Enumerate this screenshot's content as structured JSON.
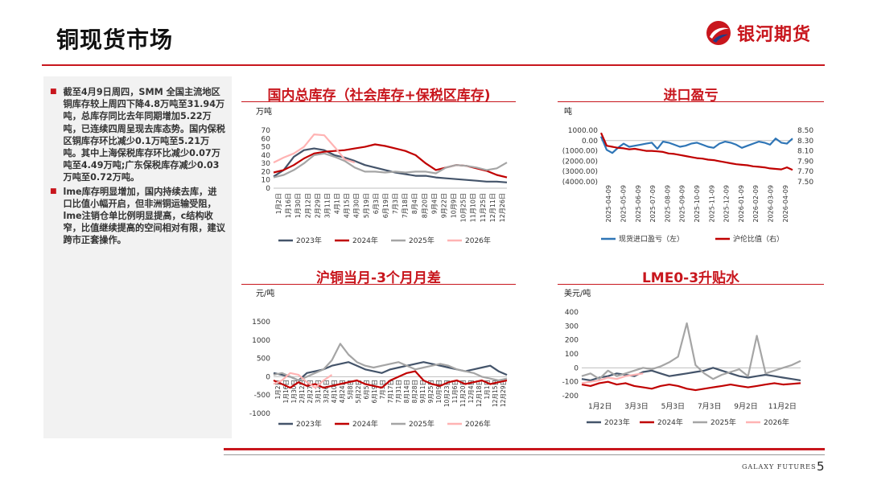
{
  "header": {
    "title": "铜现货市场",
    "logo_text": "银河期货"
  },
  "footer": {
    "brand": "GALAXY FUTURES",
    "page": "5"
  },
  "bullets": [
    "截至4月9日周四，SMM 全国主流地区铜库存较上周四下降4.8万吨至31.94万吨，总库存同比去年同期增加5.22万吨，已连续四周呈现去库态势。国内保税区铜库存环比减少0.1万吨至5.21万吨。其中上海保税库存环比减少0.07万吨至4.49万吨;广东保税库存减少0.03万吨至0.72万吨。",
    "lme库存明显增加，国内持续去库，进口比值小幅开启，但非洲铜运输受阻，lme注销仓单比例明显提高，c结构收窄，比值继续提高的空间相对有限，建议跨市正套操作。"
  ],
  "colors": {
    "accent": "#c8161d",
    "y2023": "#44546a",
    "y2024": "#c00000",
    "y2025": "#a5a5a5",
    "y2026": "#ffb3b3",
    "blue": "#2e75b6"
  },
  "chart_data": [
    {
      "type": "line",
      "title": "国内总库存（社会库存+保税区库存)",
      "ylabel": "万吨",
      "ylim": [
        0,
        70
      ],
      "yticks": [
        "70",
        "60",
        "50",
        "40",
        "30",
        "20",
        "10",
        "0"
      ],
      "xticks": [
        "1月2日",
        "1月16日",
        "1月30日",
        "2月12日",
        "2月29日",
        "3月11日",
        "4月1日",
        "4月15日",
        "4月30日",
        "5月19日",
        "6月3日",
        "6月19日",
        "7月3日",
        "7月18日",
        "8月4日",
        "8月20日",
        "9月4日",
        "9月22日",
        "10月9日",
        "10月25日",
        "11月10日",
        "11月25日",
        "12月11日",
        "12月26日"
      ],
      "legend": [
        "2023年",
        "2024年",
        "2025年",
        "2026年"
      ],
      "series": [
        {
          "name": "2023年",
          "values": [
            14,
            22,
            38,
            46,
            48,
            46,
            40,
            37,
            33,
            28,
            25,
            22,
            19,
            17,
            15,
            15,
            13,
            12,
            11,
            10,
            9,
            8,
            8,
            7
          ]
        },
        {
          "name": "2024年",
          "values": [
            19,
            22,
            28,
            36,
            42,
            44,
            45,
            46,
            48,
            50,
            53,
            51,
            48,
            45,
            40,
            30,
            22,
            25,
            28,
            27,
            24,
            21,
            16,
            13
          ]
        },
        {
          "name": "2025年",
          "values": [
            13,
            16,
            22,
            30,
            40,
            42,
            38,
            33,
            25,
            20,
            20,
            19,
            20,
            19,
            20,
            20,
            18,
            25,
            28,
            27,
            25,
            22,
            24,
            31
          ]
        },
        {
          "name": "2026年",
          "values": [
            31,
            37,
            42,
            50,
            65,
            64,
            50,
            35,
            31
          ]
        }
      ]
    },
    {
      "type": "line",
      "title": "进口盈亏",
      "ylabel": "吨",
      "ylim": [
        -4000,
        1000
      ],
      "yticks": [
        "1000.00",
        "0.00",
        "(1000.00)",
        "(2000.00)",
        "(3000.00)",
        "(4000.00)"
      ],
      "y2lim": [
        7.5,
        8.5
      ],
      "y2ticks": [
        "8.50",
        "8.30",
        "8.10",
        "7.90",
        "7.70",
        "7.50"
      ],
      "xticks": [
        "2025-04-09",
        "2025-05-09",
        "2025-06-09",
        "2025-07-09",
        "2025-08-09",
        "2025-09-09",
        "2025-10-09",
        "2025-11-09",
        "2025-12-09",
        "2026-01-09",
        "2026-02-09",
        "2026-03-09",
        "2026-04-09"
      ],
      "legend": [
        "现货进口盈亏（左）",
        "沪伦比值（右）"
      ],
      "series": [
        {
          "name": "现货进口盈亏（左）",
          "values": [
            400,
            -900,
            -1200,
            -700,
            -300,
            -600,
            -500,
            -400,
            -300,
            -200,
            -800,
            -100,
            -200,
            -400,
            -600,
            -500,
            -300,
            -200,
            -400,
            -600,
            -700,
            -300,
            -100,
            -200,
            -400,
            -700,
            -500,
            -300,
            -100,
            -200,
            -400,
            200,
            -200,
            -300,
            200
          ]
        },
        {
          "name": "沪伦比值（右）",
          "values": [
            8.45,
            8.2,
            8.18,
            8.16,
            8.15,
            8.13,
            8.14,
            8.12,
            8.1,
            8.1,
            8.09,
            8.08,
            8.05,
            8.04,
            8.02,
            8.0,
            7.98,
            7.96,
            7.95,
            7.93,
            7.92,
            7.9,
            7.88,
            7.86,
            7.84,
            7.83,
            7.82,
            7.8,
            7.79,
            7.78,
            7.76,
            7.75,
            7.74,
            7.78,
            7.73
          ]
        }
      ]
    },
    {
      "type": "line",
      "title": "沪铜当月-3个月月差",
      "ylabel": "元/吨",
      "ylim": [
        -1000,
        1500
      ],
      "yticks": [
        "1500",
        "1000",
        "500",
        "0",
        "-500",
        "-1000"
      ],
      "xticks": [
        "1月2日",
        "1月16日",
        "1月30日",
        "2月12日",
        "2月27日",
        "3月12日",
        "3月26日",
        "4月10日",
        "4月24日",
        "5月8日",
        "5月22日",
        "6月5日",
        "6月19日",
        "7月3日",
        "7月17日",
        "7月31日",
        "8月14日",
        "8月28日",
        "9月11日",
        "9月25日",
        "10月9日",
        "10月23日",
        "11月6日",
        "11月20日",
        "12月4日",
        "12月18日",
        "1月1日",
        "12月15日",
        "12月29日"
      ],
      "legend": [
        "2023年",
        "2024年",
        "2025年",
        "2026年"
      ],
      "series": [
        {
          "name": "2023年",
          "values": [
            100,
            50,
            0,
            -100,
            100,
            150,
            200,
            300,
            350,
            400,
            300,
            200,
            150,
            100,
            200,
            250,
            300,
            350,
            400,
            350,
            300,
            250,
            200,
            150,
            200,
            250,
            300,
            150,
            50
          ]
        },
        {
          "name": "2024年",
          "values": [
            -100,
            -200,
            -300,
            -150,
            -250,
            -200,
            -300,
            -250,
            -200,
            -150,
            -100,
            -200,
            -250,
            -300,
            -100,
            0,
            100,
            150,
            -100,
            -200,
            -250,
            -150,
            -100,
            -200,
            -150,
            -100,
            -200,
            -150,
            -100
          ]
        },
        {
          "name": "2025年",
          "values": [
            50,
            100,
            0,
            -100,
            0,
            100,
            200,
            450,
            900,
            600,
            400,
            300,
            250,
            300,
            350,
            400,
            300,
            200,
            250,
            300,
            350,
            300,
            200,
            150,
            100,
            0,
            -50,
            -100,
            -50
          ]
        },
        {
          "name": "2026年",
          "values": [
            -200,
            -100,
            100,
            50,
            -150,
            -300,
            -100,
            50
          ]
        }
      ]
    },
    {
      "type": "line",
      "title": "LME0-3升贴水",
      "ylabel": "美元/吨",
      "ylim": [
        -200,
        400
      ],
      "yticks": [
        "400",
        "300",
        "200",
        "100",
        "0",
        "-100",
        "-200"
      ],
      "xticks": [
        "1月2日",
        "3月3日",
        "5月3日",
        "7月3日",
        "9月2日",
        "11月2日"
      ],
      "legend": [
        "2023年",
        "2024年",
        "2025年",
        "2026年"
      ],
      "series": [
        {
          "name": "2023年",
          "values": [
            -80,
            -90,
            -70,
            -60,
            -40,
            -50,
            -60,
            -30,
            -20,
            -40,
            -60,
            -50,
            -40,
            -30,
            -20,
            0,
            -20,
            -40,
            -60,
            -70,
            -60,
            -50,
            -60,
            -70,
            -80,
            -90
          ]
        },
        {
          "name": "2024年",
          "values": [
            -120,
            -130,
            -110,
            -100,
            -120,
            -110,
            -130,
            -140,
            -150,
            -130,
            -120,
            -130,
            -150,
            -160,
            -150,
            -140,
            -130,
            -120,
            -130,
            -140,
            -130,
            -120,
            -110,
            -120,
            -115,
            -110
          ]
        },
        {
          "name": "2025年",
          "values": [
            -60,
            -40,
            -80,
            -20,
            -60,
            -40,
            -20,
            0,
            -10,
            10,
            40,
            80,
            320,
            20,
            -40,
            -80,
            -50,
            -30,
            -10,
            -60,
            230,
            -40,
            -20,
            0,
            20,
            50
          ]
        },
        {
          "name": "2026年",
          "values": [
            -110,
            -100,
            -90,
            -70,
            -80,
            -60,
            -50,
            -40
          ]
        }
      ]
    }
  ]
}
